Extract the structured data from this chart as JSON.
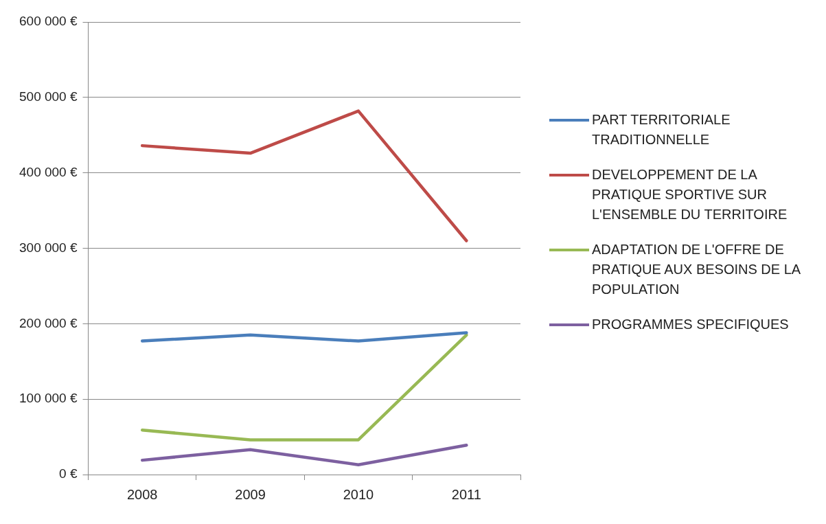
{
  "chart_data": {
    "type": "line",
    "categories": [
      "2008",
      "2009",
      "2010",
      "2011"
    ],
    "series": [
      {
        "name": "PART TERRITORIALE TRADITIONNELLE",
        "color": "#4a7ebb",
        "values": [
          177000,
          185000,
          177000,
          188000
        ]
      },
      {
        "name": "DEVELOPPEMENT DE LA PRATIQUE SPORTIVE SUR L'ENSEMBLE DU TERRITOIRE",
        "color": "#be4b48",
        "values": [
          436000,
          426000,
          482000,
          310000
        ]
      },
      {
        "name": "ADAPTATION DE L'OFFRE DE PRATIQUE AUX BESOINS DE LA POPULATION",
        "color": "#98b954",
        "values": [
          59000,
          46000,
          46000,
          185000
        ]
      },
      {
        "name": "PROGRAMMES SPECIFIQUES",
        "color": "#7d60a0",
        "values": [
          19000,
          33000,
          13000,
          39000
        ]
      }
    ],
    "ylim": [
      0,
      600000
    ],
    "yticks": [
      {
        "value": 0,
        "label": "0 €"
      },
      {
        "value": 100000,
        "label": "100 000 €"
      },
      {
        "value": 200000,
        "label": "200 000 €"
      },
      {
        "value": 300000,
        "label": "300 000 €"
      },
      {
        "value": 400000,
        "label": "400 000 €"
      },
      {
        "value": 500000,
        "label": "500 000 €"
      },
      {
        "value": 600000,
        "label": "600 000 €"
      }
    ],
    "grid": "y",
    "legend": "right",
    "marker": "none",
    "line_style": "solid"
  }
}
